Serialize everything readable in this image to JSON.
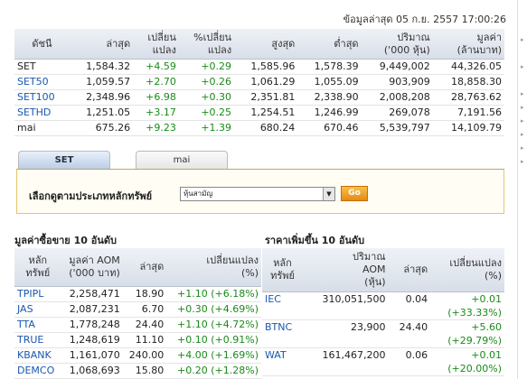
{
  "timestamp": "ข้อมูลล่าสุด 05 ก.ย. 2557 17:00:26",
  "index_table": {
    "headers": [
      "ดัชนี",
      "ล่าสุด",
      "เปลี่ยน\nแปลง",
      "%เปลี่ยน\nแปลง",
      "สูงสุด",
      "ต่ำสุด",
      "ปริมาณ\n('000 หุ้น)",
      "มูลค่า\n(ล้านบาท)"
    ],
    "rows": [
      {
        "name": "SET",
        "last": "1,584.32",
        "chg": "+4.59",
        "pct": "+0.29",
        "high": "1,585.96",
        "low": "1,578.39",
        "vol": "9,449,002",
        "val": "44,326.05"
      },
      {
        "name": "SET50",
        "last": "1,059.57",
        "chg": "+2.70",
        "pct": "+0.26",
        "high": "1,061.29",
        "low": "1,055.09",
        "vol": "903,909",
        "val": "18,858.30"
      },
      {
        "name": "SET100",
        "last": "2,348.96",
        "chg": "+6.98",
        "pct": "+0.30",
        "high": "2,351.81",
        "low": "2,338.90",
        "vol": "2,008,208",
        "val": "28,763.62"
      },
      {
        "name": "SETHD",
        "last": "1,251.05",
        "chg": "+3.17",
        "pct": "+0.25",
        "high": "1,254.51",
        "low": "1,246.99",
        "vol": "269,078",
        "val": "7,191.56"
      },
      {
        "name": "mai",
        "last": "675.26",
        "chg": "+9.23",
        "pct": "+1.39",
        "high": "680.24",
        "low": "670.46",
        "vol": "5,539,797",
        "val": "14,109.79"
      }
    ]
  },
  "tabs": [
    {
      "label": "SET",
      "active": true
    },
    {
      "label": "mai",
      "active": false
    }
  ],
  "filter": {
    "label": "เลือกดูตามประเภทหลักทรัพย์",
    "selected": "หุ้นสามัญ",
    "go_label": "Go"
  },
  "top_value": {
    "title": "มูลค่าซื้อขาย 10 อันดับ",
    "headers": [
      "หลัก\nทรัพย์",
      "มูลค่า AOM\n('000 บาท)",
      "ล่าสุด",
      "เปลี่ยนแปลง\n(%)"
    ],
    "rows": [
      {
        "sym": "TPIPL",
        "val": "2,258,471",
        "last": "18.90",
        "chg": "+1.10 (+6.18%)"
      },
      {
        "sym": "JAS",
        "val": "2,087,231",
        "last": "6.70",
        "chg": "+0.30 (+4.69%)"
      },
      {
        "sym": "TTA",
        "val": "1,778,248",
        "last": "24.40",
        "chg": "+1.10 (+4.72%)"
      },
      {
        "sym": "TRUE",
        "val": "1,248,619",
        "last": "11.10",
        "chg": "+0.10 (+0.91%)"
      },
      {
        "sym": "KBANK",
        "val": "1,161,070",
        "last": "240.00",
        "chg": "+4.00 (+1.69%)"
      },
      {
        "sym": "DEMCO",
        "val": "1,068,693",
        "last": "15.80",
        "chg": "+0.20 (+1.28%)"
      }
    ]
  },
  "top_gainers": {
    "title": "ราคาเพิ่มขึ้น 10 อันดับ",
    "headers": [
      "หลัก\nทรัพย์",
      "ปริมาณ\nAOM\n(หุ้น)",
      "ล่าสุด",
      "เปลี่ยนแปลง\n(%)"
    ],
    "rows": [
      {
        "sym": "IEC",
        "vol": "310,051,500",
        "last": "0.04",
        "chg": "+0.01",
        "pct": "(+33.33%)"
      },
      {
        "sym": "BTNC",
        "vol": "23,900",
        "last": "24.40",
        "chg": "+5.60",
        "pct": "(+29.79%)"
      },
      {
        "sym": "WAT",
        "vol": "161,467,200",
        "last": "0.06",
        "chg": "+0.01",
        "pct": "(+20.00%)"
      }
    ]
  }
}
